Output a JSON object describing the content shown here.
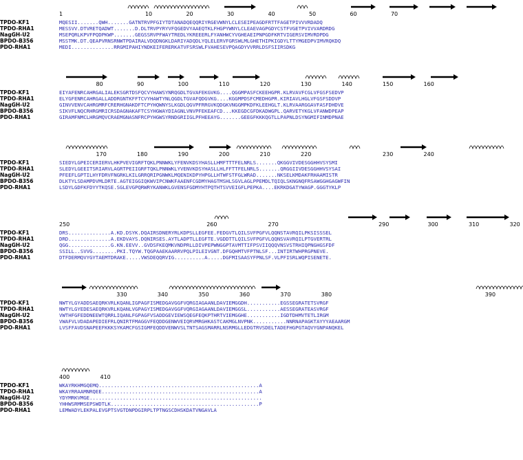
{
  "blocks": [
    {
      "ruler": [
        {
          "col": 0,
          "label": "1"
        },
        {
          "col": 21,
          "label": "10"
        },
        {
          "col": 31,
          "label": "20"
        },
        {
          "col": 41,
          "label": "30"
        },
        {
          "col": 51,
          "label": "40"
        },
        {
          "col": 61,
          "label": "50"
        },
        {
          "col": 71,
          "label": "60"
        },
        {
          "col": 81,
          "label": "70"
        }
      ],
      "rows": [
        {
          "name": "TPDO-KF1",
          "seq": "MQESII.......QWH.......GATNTRVPFGIYTDTANADQEQQRIYRGEVWNYLCLESEIPEAGDFRTTFAGETPIVVVRDADQ"
        },
        {
          "name": "TPDO-RHA1",
          "seq": "MESSVV.DTVRETQADWT.......D.DLTRVPYRYVFQGEDVYAAEQTKLFHGPYWNYLCLEAEVAGPGDYCSTFVGETPVIVVARDRDG"
        },
        {
          "name": "NagGH-U2",
          "seq": "MSEPQRLKPVFPQDPKWP.......GEGSSRVPFWAYTREDLYKREEERLFYANHWCYVGHEAEIPNPGDFKRTVIGERSVIMVRDPDG"
        },
        {
          "name": "BPDO-B356",
          "seq": "MSSTMK.DT.QEAPVRNSRNWTPDAIRALVDQDNGKLDARIYADQDLYQLELERVFGRSWLMLGHETHIPKIGDYLTTYMGEDPVIMVRQKDQ"
        },
        {
          "name": "PDO-RHA1",
          "seq": "MEDI..............RRGMIPAHIYNDKEIFERERKATVFSRSWLFVAHESEVPQAGDYVVRRLDSFSIIRSDKG"
        }
      ],
      "hl": [
        [
          {
            "s": 0,
            "e": 0,
            "c": "b"
          },
          {
            "s": 54,
            "e": 54,
            "c": "b"
          },
          {
            "s": 71,
            "e": 71,
            "c": "b"
          }
        ],
        [
          {
            "s": 0,
            "e": 0,
            "c": "b"
          },
          {
            "s": 54,
            "e": 54,
            "c": "b"
          },
          {
            "s": 71,
            "e": 71,
            "c": "b"
          }
        ],
        [
          {
            "s": 0,
            "e": 0,
            "c": "b"
          },
          {
            "s": 54,
            "e": 54,
            "c": "b"
          },
          {
            "s": 71,
            "e": 71,
            "c": "b"
          }
        ],
        [
          {
            "s": 0,
            "e": 0,
            "c": "b"
          },
          {
            "s": 54,
            "e": 54,
            "c": "b"
          },
          {
            "s": 71,
            "e": 71,
            "c": "b"
          }
        ],
        [
          {
            "s": 0,
            "e": 0,
            "c": "b"
          },
          {
            "s": 54,
            "e": 54,
            "c": "b"
          },
          {
            "s": 71,
            "e": 71,
            "c": "b"
          }
        ]
      ],
      "ss": "arrows: 2, helices"
    },
    {
      "ruler": [
        {
          "col": 9,
          "label": "80"
        },
        {
          "col": 19,
          "label": "90"
        },
        {
          "col": 29,
          "label": "100"
        },
        {
          "col": 39,
          "label": "110"
        },
        {
          "col": 49,
          "label": "120"
        },
        {
          "col": 59,
          "label": "130"
        },
        {
          "col": 69,
          "label": "140"
        },
        {
          "col": 79,
          "label": "150"
        },
        {
          "col": 89,
          "label": "160"
        }
      ],
      "rows": [
        {
          "name": "TPDO-KF1",
          "seq": "EIYAFENRCAHRGALIALEKSGRTDSFQCVYHAWSYNRQGDLTGVAFEKGVKG....QGGMPASFCKEEHGPR.KLRVAVFCGLVFGSFSEDVP"
        },
        {
          "name": "TPDO-RHA1",
          "seq": "ELYGFENRCAHRGALLADDRGNTKFFTCVYHAWTYNLQGDLTGVAFQDGVKG....KGGMPDSFCMEDHGPR.KIRIAVLHGLVFGSFSDDVP"
        },
        {
          "name": "NagGH-U2",
          "seq": "GINVVENVCAHRGMRFCRERHGNAKDFTCPYHQWNYSLKGDLQGVPFRRGVKQDGKVNGGMPKDFKLEEHGLT.KLRVAARGGAVFASFDHDVE"
        },
        {
          "name": "BPDO-B356",
          "seq": "SIKVFLNQCRHRGMRICRSDAGNAKAFTCSYHGWAYDIAGNLVNVPFEKEAFCD...KKEGDCGFDKADWGPL.QARVETYKGLVFANWDPEAP"
        },
        {
          "name": "PDO-RHA1",
          "seq": "GIRAMFNMCLHRGMQVCRAEMGNASNFRCPYHGWSYRNDGRIIGLPFHEEAYG.......GEEGFKKKQGTLLPAPNLDSYNGMIFINMDPNAE"
        }
      ],
      "hl": []
    },
    {
      "ruler": [
        {
          "col": 9,
          "label": "170"
        },
        {
          "col": 19,
          "label": "180"
        },
        {
          "col": 29,
          "label": "190"
        },
        {
          "col": 39,
          "label": "200"
        },
        {
          "col": 49,
          "label": "210"
        },
        {
          "col": 59,
          "label": "220"
        },
        {
          "col": 79,
          "label": "230"
        },
        {
          "col": 89,
          "label": "240"
        }
      ],
      "rows": [
        {
          "name": "TPDO-KF1",
          "seq": "SIEDYLGPEICERIERVLHKPVEVIGRFTQKLPNNWKLYFENVKDSYHASLLHMFTTTFELNRLS.......QKGGVIVDESGGHHVSYSMI"
        },
        {
          "name": "TPDO-RHA1",
          "seq": "SLEDYLGEEITSRIARVLAGRTPEIIGRFTQKLPNNWKLYVENVKDSYHASLLHLFFTTFELNRLS.......QRGGIIVDESGGHHVSYSAI"
        },
        {
          "name": "NagGH-U2",
          "seq": "PFEEFLGPTILHYFDRVFNGRKLKILGRRQRIPGNWKLMQENIKDPYHPGLLHTWFSTFGLWRAD.......NKSELKMDAKFRHAAMISTR"
        },
        {
          "name": "BPDO-B356",
          "seq": "DLKTYLSDAMPDVMLDRTE.AGTEIGGIQKWVIPCNWKFAAENFCGDMYHAGTMSHLSGVLAGLPPEMDLTQIQLSKNGNQFRSAWGGHGAGWFIN"
        },
        {
          "name": "PDO-RHA1",
          "seq": "LSDYLGDFKFDYYTKQSE.SGLEVGPQRWRYKANWKLGVENSFGDMYHTPQTHTSVVEIGFLPEPKA....EKRKDGATYWAGP.GGGTYKLP"
        }
      ],
      "hl": []
    },
    {
      "ruler": [
        {
          "col": 0,
          "label": "250"
        },
        {
          "col": 36,
          "label": "260"
        },
        {
          "col": 51,
          "label": "270"
        },
        {
          "col": 78,
          "label": "290"
        },
        {
          "col": 90,
          "label": "300"
        },
        {
          "col": 100,
          "label": "310"
        },
        {
          "col": 110,
          "label": "320"
        }
      ],
      "rows": [
        {
          "name": "TPDO-KF1",
          "seq": "DRS..............A.KD.DSYK.DQAIRSDNERYRLKDPSLLEGFEE.FEDGVTLQILSVFPGFVLQQNSTAVRQILPKSISSSEL"
        },
        {
          "name": "TPDO-RHA1",
          "seq": "DRD..............A.EKDVAYS.DQNIRSES.AYTLADPTLLEGFTE.VGDDTTLQILSVFPGFVLQQNSVAVRQILPTGVERTRL"
        },
        {
          "name": "NagGH-U2",
          "seq": "QGG..............G.KN.EEVV..GVDSFKEQMKVNDPRLLDIVPEPWNGGPTAVMTTIFPSVIIQQQVNSVSTRHIQPNGHGSFDF"
        },
        {
          "name": "BPDO-B356",
          "seq": "SSILL..SVVG........PKI.TQYW.TQGPAAEKAARRVPQLPILEIVGNT.DFGQHMTVFPTNLSF...INTIRTWHPRGPNEVE."
        },
        {
          "name": "PDO-RHA1",
          "seq": "DTFDERMQVYGYTAEMTDRAKE.....VWSDEQQRVIG..........A.....DGFMISAASYFPNLSF.VLPFISRLWQPISENETE."
        }
      ],
      "hl": []
    },
    {
      "ruler": [
        {
          "col": 14,
          "label": "330"
        },
        {
          "col": 24,
          "label": "340"
        },
        {
          "col": 34,
          "label": "350"
        },
        {
          "col": 44,
          "label": "360"
        },
        {
          "col": 54,
          "label": "370"
        },
        {
          "col": 64,
          "label": "380"
        },
        {
          "col": 104,
          "label": "390"
        }
      ],
      "rows": [
        {
          "name": "TPDO-KF1",
          "seq": "NWTYLGYADDSAEQRKVRLKQANLIGPAGFISMEDGAVGGFVQRGIAGAANLDAVIEMGGDH...........EGSSEGRATETSVRGF"
        },
        {
          "name": "TPDO-RHA1",
          "seq": "NWTYLGYEDESAEQRKVRLKQANLVGPAGYISMEDGAVGGFVQRGIAGAANLDAVIEMGGSL...........AESSEGRATEASVRGF"
        },
        {
          "name": "NagGH-U2",
          "seq": "VWTHFGFEDDNEEWTQRRLIQANLFGPAGFVSADDGEVIEWSQEGFEQKPTHRTVIEMGGHE...........IGDTDHMVTETLIRGM"
        },
        {
          "name": "BPDO-B356",
          "seq": "VWAFVLVDADAPEDIEFRLQNIRTFMAGGVFEQDDGENWVEIQRVMRGHKASTCAKMGLNVPNK...........NNRNAPAGKTAYYYAEAARGM"
        },
        {
          "name": "PDO-RHA1",
          "seq": "LVSFFAVDSNAPEEFKKKSYKAMCFGSIGMFEQDDVENWVSLTNTSAGSMARRLNSRMGLLEDGTRVSDELTADEFHGPGTAQVYGNPANQKEL"
        }
      ],
      "hl": []
    },
    {
      "ruler": [
        {
          "col": 0,
          "label": "400"
        },
        {
          "col": 10,
          "label": "410"
        }
      ],
      "rows": [
        {
          "name": "TPDO-KF1",
          "seq": "WKAYRKHMGQEMQ.....................................................A"
        },
        {
          "name": "TPDO-RHA1",
          "seq": "WKAYRRAAMNRQEE....................................................A"
        },
        {
          "name": "NagGH-U2",
          "seq": "YDYMRKVMGE........................................................."
        },
        {
          "name": "BPDO-B356",
          "seq": "YHHWSRMMSEPSWDTLK.................................................P"
        },
        {
          "name": "PDO-RHA1",
          "seq": "LEMWADYLEKPALEVGPTSVGTDNPDGIRPLTPTNGSCDHSKDATVNGAVLA"
        }
      ],
      "hl": []
    }
  ]
}
